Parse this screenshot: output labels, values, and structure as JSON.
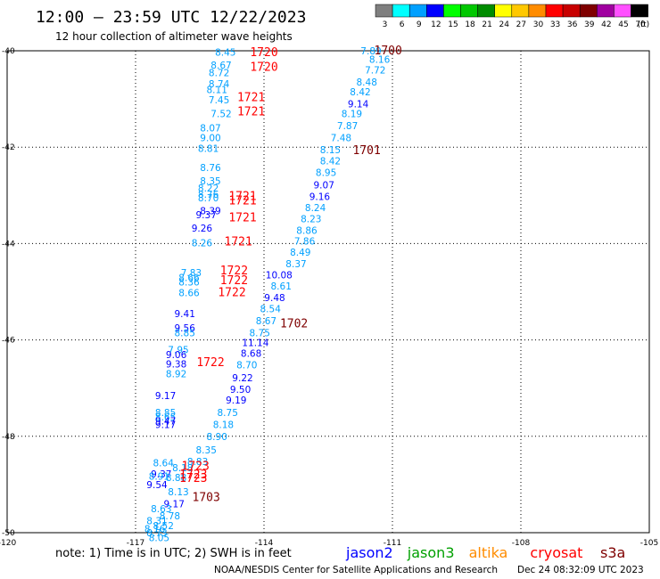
{
  "header": {
    "title": "12:00 — 23:59 UTC 12/22/2023",
    "subtitle": "12 hour collection of altimeter wave heights"
  },
  "legend": {
    "unit": "(ft)",
    "bins": [
      {
        "label": "3",
        "color": "#7f7f7f"
      },
      {
        "label": "6",
        "color": "#00ffff"
      },
      {
        "label": "9",
        "color": "#00a0ff"
      },
      {
        "label": "12",
        "color": "#0000ff"
      },
      {
        "label": "15",
        "color": "#00ff00"
      },
      {
        "label": "18",
        "color": "#00c800"
      },
      {
        "label": "21",
        "color": "#008c00"
      },
      {
        "label": "24",
        "color": "#ffff00"
      },
      {
        "label": "27",
        "color": "#ffc800"
      },
      {
        "label": "30",
        "color": "#ff8c00"
      },
      {
        "label": "33",
        "color": "#ff0000"
      },
      {
        "label": "36",
        "color": "#c80000"
      },
      {
        "label": "39",
        "color": "#7f0000"
      },
      {
        "label": "42",
        "color": "#a000a0"
      },
      {
        "label": "45",
        "color": "#ff50ff"
      },
      {
        "label": "70",
        "color": "#000000"
      }
    ]
  },
  "chart_data": {
    "type": "scatter",
    "title": "12:00 — 23:59 UTC 12/22/2023",
    "subtitle": "12 hour collection of altimeter wave heights",
    "xlim": [
      -120,
      -105
    ],
    "ylim": [
      -50,
      -40
    ],
    "xticks": [
      -120,
      -117,
      -114,
      -111,
      -108,
      -105
    ],
    "yticks": [
      -40,
      -42,
      -44,
      -46,
      -48,
      -50
    ],
    "xtick_labels": [
      "-120",
      "-117",
      "-114",
      "-111",
      "-108",
      "-105"
    ],
    "ytick_labels": [
      "-40",
      "-42",
      "-44",
      "-46",
      "-48",
      "-50"
    ],
    "grid": true,
    "series": [
      {
        "name": "jason2",
        "color": "#0000ff",
        "points": [
          {
            "x": -111.5,
            "y": -40.0,
            "label": "7.89",
            "c": "#00a0ff"
          },
          {
            "x": -111.3,
            "y": -40.18,
            "label": "8.16",
            "c": "#00a0ff"
          },
          {
            "x": -111.4,
            "y": -40.4,
            "label": "7.72",
            "c": "#00a0ff"
          },
          {
            "x": -111.6,
            "y": -40.65,
            "label": "8.48",
            "c": "#00a0ff"
          },
          {
            "x": -111.75,
            "y": -40.85,
            "label": "8.42",
            "c": "#00a0ff"
          },
          {
            "x": -111.8,
            "y": -41.1,
            "label": "9.14",
            "c": "#0000ff"
          },
          {
            "x": -111.95,
            "y": -41.3,
            "label": "8.19",
            "c": "#00a0ff"
          },
          {
            "x": -112.05,
            "y": -41.55,
            "label": "7.87",
            "c": "#00a0ff"
          },
          {
            "x": -112.2,
            "y": -41.8,
            "label": "7.48",
            "c": "#00a0ff"
          },
          {
            "x": -112.45,
            "y": -42.05,
            "label": "8.15",
            "c": "#00a0ff"
          },
          {
            "x": -112.45,
            "y": -42.28,
            "label": "8.42",
            "c": "#00a0ff"
          },
          {
            "x": -112.55,
            "y": -42.52,
            "label": "8.95",
            "c": "#00a0ff"
          },
          {
            "x": -112.6,
            "y": -42.78,
            "label": "9.07",
            "c": "#0000ff"
          },
          {
            "x": -112.7,
            "y": -43.02,
            "label": "9.16",
            "c": "#0000ff"
          },
          {
            "x": -112.8,
            "y": -43.25,
            "label": "8.24",
            "c": "#00a0ff"
          },
          {
            "x": -112.9,
            "y": -43.48,
            "label": "8.23",
            "c": "#00a0ff"
          },
          {
            "x": -113.0,
            "y": -43.72,
            "label": "8.86",
            "c": "#00a0ff"
          },
          {
            "x": -113.05,
            "y": -43.95,
            "label": "7.86",
            "c": "#00a0ff"
          },
          {
            "x": -113.15,
            "y": -44.18,
            "label": "8.49",
            "c": "#00a0ff"
          },
          {
            "x": -113.25,
            "y": -44.42,
            "label": "8.37",
            "c": "#00a0ff"
          },
          {
            "x": -113.65,
            "y": -44.65,
            "label": "10.08",
            "c": "#0000ff"
          },
          {
            "x": -113.6,
            "y": -44.88,
            "label": "8.61",
            "c": "#00a0ff"
          },
          {
            "x": -113.75,
            "y": -45.12,
            "label": "9.48",
            "c": "#0000ff"
          },
          {
            "x": -113.85,
            "y": -45.35,
            "label": "8.54",
            "c": "#00a0ff"
          },
          {
            "x": -113.95,
            "y": -45.6,
            "label": "8.67",
            "c": "#00a0ff"
          },
          {
            "x": -114.1,
            "y": -45.85,
            "label": "8.75",
            "c": "#00a0ff"
          },
          {
            "x": -114.2,
            "y": -46.05,
            "label": "11.14",
            "c": "#0000ff"
          },
          {
            "x": -114.3,
            "y": -46.28,
            "label": "8.68",
            "c": "#0000ff"
          },
          {
            "x": -114.4,
            "y": -46.52,
            "label": "8.70",
            "c": "#00a0ff"
          },
          {
            "x": -114.5,
            "y": -46.78,
            "label": "9.22",
            "c": "#0000ff"
          },
          {
            "x": -114.55,
            "y": -47.02,
            "label": "9.50",
            "c": "#0000ff"
          },
          {
            "x": -114.65,
            "y": -47.25,
            "label": "9.19",
            "c": "#0000ff"
          },
          {
            "x": -114.85,
            "y": -47.5,
            "label": "8.75",
            "c": "#00a0ff"
          },
          {
            "x": -114.95,
            "y": -47.75,
            "label": "8.18",
            "c": "#00a0ff"
          },
          {
            "x": -115.1,
            "y": -48.0,
            "label": "8.90",
            "c": "#00a0ff"
          },
          {
            "x": -115.35,
            "y": -48.28,
            "label": "8.35",
            "c": "#00a0ff"
          },
          {
            "x": -115.55,
            "y": -48.52,
            "label": "8.83",
            "c": "#00a0ff"
          }
        ]
      },
      {
        "name": "jason3",
        "color": "#00c800",
        "points": [
          {
            "x": -114.9,
            "y": -40.03,
            "label": "8.45",
            "c": "#00a0ff"
          },
          {
            "x": -115.0,
            "y": -40.3,
            "label": "8.67",
            "c": "#00a0ff"
          },
          {
            "x": -115.05,
            "y": -40.45,
            "label": "8.72",
            "c": "#00a0ff"
          },
          {
            "x": -115.05,
            "y": -40.68,
            "label": "8.74",
            "c": "#00a0ff"
          },
          {
            "x": -115.1,
            "y": -40.8,
            "label": "8.11",
            "c": "#00a0ff"
          },
          {
            "x": -115.05,
            "y": -41.02,
            "label": "7.45",
            "c": "#00a0ff"
          },
          {
            "x": -115.0,
            "y": -41.3,
            "label": "7.52",
            "c": "#00a0ff"
          },
          {
            "x": -115.25,
            "y": -41.6,
            "label": "8.07",
            "c": "#00a0ff"
          },
          {
            "x": -115.25,
            "y": -41.8,
            "label": "9.00",
            "c": "#00a0ff"
          },
          {
            "x": -115.3,
            "y": -42.02,
            "label": "8.81",
            "c": "#00a0ff"
          },
          {
            "x": -115.25,
            "y": -42.42,
            "label": "8.76",
            "c": "#00a0ff"
          },
          {
            "x": -115.25,
            "y": -42.7,
            "label": "8.35",
            "c": "#00a0ff"
          },
          {
            "x": -115.3,
            "y": -42.85,
            "label": "8.22",
            "c": "#00a0ff"
          },
          {
            "x": -115.3,
            "y": -42.98,
            "label": "8.76",
            "c": "#00a0ff"
          },
          {
            "x": -115.3,
            "y": -43.05,
            "label": "8.70",
            "c": "#00a0ff"
          },
          {
            "x": -115.25,
            "y": -43.32,
            "label": "8.39",
            "c": "#0000ff"
          },
          {
            "x": -115.35,
            "y": -43.4,
            "label": "9.37",
            "c": "#0000ff"
          },
          {
            "x": -115.45,
            "y": -43.68,
            "label": "9.26",
            "c": "#0000ff"
          },
          {
            "x": -115.45,
            "y": -43.98,
            "label": "8.26",
            "c": "#00a0ff"
          },
          {
            "x": -115.7,
            "y": -44.6,
            "label": "7.83",
            "c": "#00a0ff"
          },
          {
            "x": -115.75,
            "y": -44.7,
            "label": "8.66",
            "c": "#00a0ff"
          },
          {
            "x": -115.75,
            "y": -44.8,
            "label": "8.36",
            "c": "#00a0ff"
          },
          {
            "x": -115.75,
            "y": -45.02,
            "label": "8.66",
            "c": "#00a0ff"
          },
          {
            "x": -115.85,
            "y": -45.45,
            "label": "9.41",
            "c": "#0000ff"
          },
          {
            "x": -115.85,
            "y": -45.75,
            "label": "9.56",
            "c": "#0000ff"
          },
          {
            "x": -115.85,
            "y": -45.85,
            "label": "8.85",
            "c": "#00a0ff"
          },
          {
            "x": -116.0,
            "y": -46.2,
            "label": "7.95",
            "c": "#00a0ff"
          },
          {
            "x": -116.05,
            "y": -46.3,
            "label": "9.06",
            "c": "#0000ff"
          },
          {
            "x": -116.05,
            "y": -46.5,
            "label": "9.38",
            "c": "#0000ff"
          },
          {
            "x": -116.05,
            "y": -46.7,
            "label": "8.92",
            "c": "#00a0ff"
          },
          {
            "x": -116.3,
            "y": -47.15,
            "label": "9.17",
            "c": "#0000ff"
          },
          {
            "x": -116.3,
            "y": -47.5,
            "label": "8.85",
            "c": "#00a0ff"
          },
          {
            "x": -116.3,
            "y": -47.6,
            "label": "8.65",
            "c": "#00a0ff"
          },
          {
            "x": -116.3,
            "y": -47.68,
            "label": "9.47",
            "c": "#0000ff"
          },
          {
            "x": -116.3,
            "y": -47.75,
            "label": "9.17",
            "c": "#0000ff"
          }
        ]
      },
      {
        "name": "altika",
        "color": "#ff8c00",
        "points": [
          {
            "x": -116.35,
            "y": -48.55,
            "label": "8.64",
            "c": "#00a0ff"
          },
          {
            "x": -115.9,
            "y": -48.65,
            "label": "8.18",
            "c": "#00a0ff"
          },
          {
            "x": -116.4,
            "y": -48.78,
            "label": "9.37",
            "c": "#0000ff"
          },
          {
            "x": -116.45,
            "y": -48.83,
            "label": "8.91",
            "c": "#00a0ff"
          },
          {
            "x": -116.05,
            "y": -48.85,
            "label": "8.88",
            "c": "#00a0ff"
          },
          {
            "x": -116.5,
            "y": -49.0,
            "label": "9.54",
            "c": "#0000ff"
          },
          {
            "x": -116.0,
            "y": -49.15,
            "label": "8.13",
            "c": "#00a0ff"
          },
          {
            "x": -116.1,
            "y": -49.4,
            "label": "9.17",
            "c": "#0000ff"
          },
          {
            "x": -116.4,
            "y": -49.5,
            "label": "8.63",
            "c": "#00a0ff"
          },
          {
            "x": -116.2,
            "y": -49.65,
            "label": "8.78",
            "c": "#00a0ff"
          },
          {
            "x": -116.5,
            "y": -49.75,
            "label": "8.31",
            "c": "#00a0ff"
          },
          {
            "x": -116.35,
            "y": -49.85,
            "label": "8.52",
            "c": "#00a0ff"
          },
          {
            "x": -116.55,
            "y": -49.92,
            "label": "8.16",
            "c": "#00a0ff"
          },
          {
            "x": -116.5,
            "y": -50.0,
            "label": "8.73",
            "c": "#00a0ff"
          },
          {
            "x": -116.45,
            "y": -50.1,
            "label": "8.05",
            "c": "#00a0ff"
          }
        ]
      },
      {
        "name": "cryosat",
        "color": "#ff0000",
        "points": []
      },
      {
        "name": "s3a",
        "color": "#7f0000",
        "points": []
      }
    ],
    "time_labels": [
      {
        "x": -111.1,
        "y": -39.98,
        "label": "1700",
        "c": "#7f0000"
      },
      {
        "x": -114.0,
        "y": -40.02,
        "label": "1720",
        "c": "#ff0000"
      },
      {
        "x": -114.0,
        "y": -40.32,
        "label": "1720",
        "c": "#ff0000"
      },
      {
        "x": -114.3,
        "y": -40.95,
        "label": "1721",
        "c": "#ff0000"
      },
      {
        "x": -114.3,
        "y": -41.25,
        "label": "1721",
        "c": "#ff0000"
      },
      {
        "x": -111.6,
        "y": -42.05,
        "label": "1701",
        "c": "#7f0000"
      },
      {
        "x": -114.5,
        "y": -43.0,
        "label": "1721",
        "c": "#ff0000"
      },
      {
        "x": -114.5,
        "y": -43.1,
        "label": "1721",
        "c": "#ff0000"
      },
      {
        "x": -114.5,
        "y": -43.45,
        "label": "1721",
        "c": "#ff0000"
      },
      {
        "x": -114.6,
        "y": -43.95,
        "label": "1721",
        "c": "#ff0000"
      },
      {
        "x": -114.7,
        "y": -44.55,
        "label": "1722",
        "c": "#ff0000"
      },
      {
        "x": -114.7,
        "y": -44.75,
        "label": "1722",
        "c": "#ff0000"
      },
      {
        "x": -114.75,
        "y": -45.0,
        "label": "1722",
        "c": "#ff0000"
      },
      {
        "x": -113.3,
        "y": -45.65,
        "label": "1702",
        "c": "#7f0000"
      },
      {
        "x": -115.25,
        "y": -46.45,
        "label": "1722",
        "c": "#ff0000"
      },
      {
        "x": -115.6,
        "y": -48.6,
        "label": "1723",
        "c": "#ff0000"
      },
      {
        "x": -115.65,
        "y": -48.78,
        "label": "1723",
        "c": "#ff0000"
      },
      {
        "x": -115.65,
        "y": -48.85,
        "label": "1723",
        "c": "#ff0000"
      },
      {
        "x": -115.35,
        "y": -49.25,
        "label": "1703",
        "c": "#7f0000"
      }
    ]
  },
  "footer": {
    "note": "note:  1) Time is in UTC;  2) SWH is in feet",
    "satellites": [
      {
        "label": "jason2",
        "color": "#0000ff"
      },
      {
        "label": "jason3",
        "color": "#00a000"
      },
      {
        "label": "altika",
        "color": "#ff8c00"
      },
      {
        "label": "cryosat",
        "color": "#ff0000"
      },
      {
        "label": "s3a",
        "color": "#7f0000"
      }
    ],
    "credit": "NOAA/NESDIS Center for Satellite Applications and Research",
    "timestamp": "Dec 24 08:32:09 UTC 2023"
  }
}
